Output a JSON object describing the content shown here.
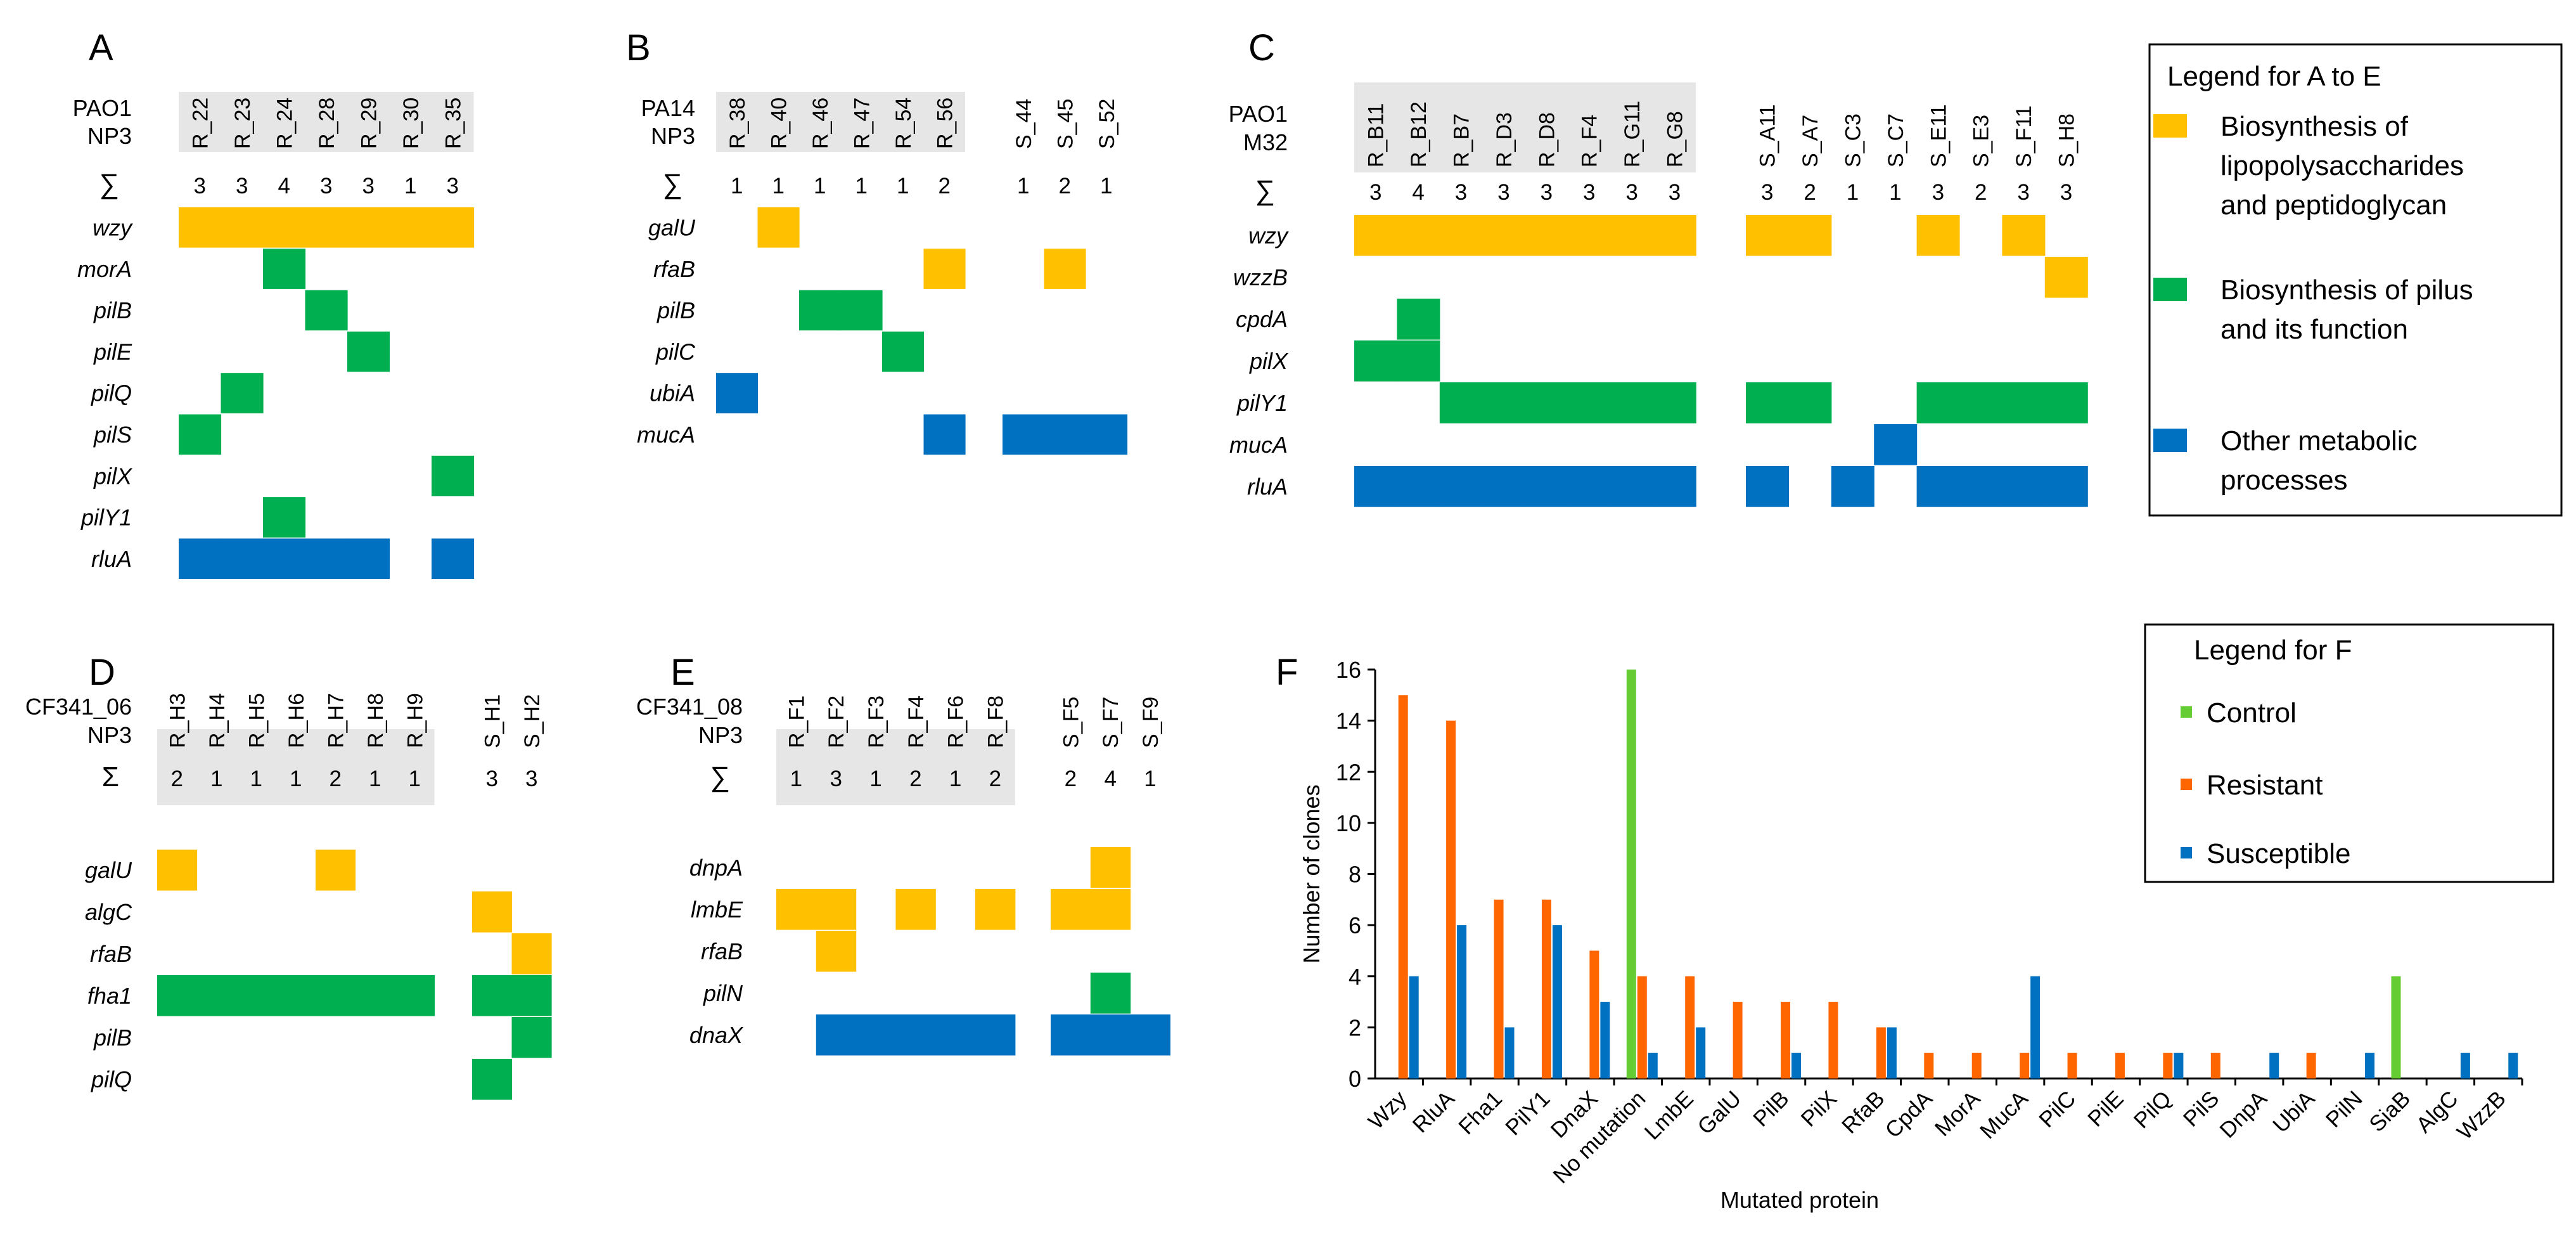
{
  "colors": {
    "lps": "#FFC000",
    "pilus": "#00B050",
    "other": "#0070C0",
    "grey": "#E6E6E6",
    "control": "#66CC33",
    "resistant": "#FF6600",
    "susceptible": "#0070C0"
  },
  "legend_ae": {
    "title": "Legend for A to E",
    "items": [
      {
        "key": "lps",
        "lines": [
          "Biosynthesis of",
          "lipopolysaccharides",
          "and peptidoglycan"
        ]
      },
      {
        "key": "pilus",
        "lines": [
          "Biosynthesis of pilus",
          "and its function"
        ]
      },
      {
        "key": "other",
        "lines": [
          "Other metabolic",
          "processes"
        ]
      }
    ]
  },
  "legend_f": {
    "title": "Legend for F",
    "items": [
      {
        "key": "control",
        "label": "Control"
      },
      {
        "key": "resistant",
        "label": "Resistant"
      },
      {
        "key": "susceptible",
        "label": "Susceptible"
      }
    ]
  },
  "panels": [
    {
      "letter": "A",
      "strain": "PAO1",
      "phage": "NP3",
      "sum_symbol": "∑",
      "groups": [
        {
          "columns": [
            "R_22",
            "R_23",
            "R_24",
            "R_28",
            "R_29",
            "R_30",
            "R_35"
          ],
          "sums": [
            "3",
            "3",
            "4",
            "3",
            "3",
            "1",
            "3"
          ],
          "shaded": true
        }
      ],
      "rows": [
        {
          "gene": "wzy",
          "color": "lps",
          "cells": [
            [
              0,
              0
            ],
            [
              0,
              1
            ],
            [
              0,
              2
            ],
            [
              0,
              3
            ],
            [
              0,
              4
            ],
            [
              0,
              5
            ],
            [
              0,
              6
            ]
          ]
        },
        {
          "gene": "morA",
          "color": "pilus",
          "cells": [
            [
              0,
              2
            ]
          ]
        },
        {
          "gene": "pilB",
          "color": "pilus",
          "cells": [
            [
              0,
              3
            ]
          ]
        },
        {
          "gene": "pilE",
          "color": "pilus",
          "cells": [
            [
              0,
              4
            ]
          ]
        },
        {
          "gene": "pilQ",
          "color": "pilus",
          "cells": [
            [
              0,
              1
            ]
          ]
        },
        {
          "gene": "pilS",
          "color": "pilus",
          "cells": [
            [
              0,
              0
            ]
          ]
        },
        {
          "gene": "pilX",
          "color": "pilus",
          "cells": [
            [
              0,
              6
            ]
          ]
        },
        {
          "gene": "pilY1",
          "color": "pilus",
          "cells": [
            [
              0,
              2
            ]
          ]
        },
        {
          "gene": "rluA",
          "color": "other",
          "cells": [
            [
              0,
              0
            ],
            [
              0,
              1
            ],
            [
              0,
              2
            ],
            [
              0,
              3
            ],
            [
              0,
              4
            ],
            [
              0,
              6
            ]
          ]
        }
      ]
    },
    {
      "letter": "B",
      "strain": "PA14",
      "phage": "NP3",
      "sum_symbol": "∑",
      "groups": [
        {
          "columns": [
            "R_38",
            "R_40",
            "R_46",
            "R_47",
            "R_54",
            "R_56"
          ],
          "sums": [
            "1",
            "1",
            "1",
            "1",
            "1",
            "2"
          ],
          "shaded": true
        },
        {
          "columns": [
            "S_44",
            "S_45",
            "S_52"
          ],
          "sums": [
            "1",
            "2",
            "1"
          ],
          "shaded": false
        }
      ],
      "rows": [
        {
          "gene": "galU",
          "color": "lps",
          "cells": [
            [
              0,
              1
            ]
          ]
        },
        {
          "gene": "rfaB",
          "color": "lps",
          "cells": [
            [
              0,
              5
            ],
            [
              1,
              1
            ]
          ]
        },
        {
          "gene": "pilB",
          "color": "pilus",
          "cells": [
            [
              0,
              2
            ],
            [
              0,
              3
            ]
          ]
        },
        {
          "gene": "pilC",
          "color": "pilus",
          "cells": [
            [
              0,
              4
            ]
          ]
        },
        {
          "gene": "ubiA",
          "color": "other",
          "cells": [
            [
              0,
              0
            ]
          ]
        },
        {
          "gene": "mucA",
          "color": "other",
          "cells": [
            [
              0,
              5
            ],
            [
              1,
              0
            ],
            [
              1,
              1
            ],
            [
              1,
              2
            ]
          ]
        }
      ]
    },
    {
      "letter": "C",
      "strain": "PAO1",
      "phage": "M32",
      "sum_symbol": "∑",
      "groups": [
        {
          "columns": [
            "R_B11",
            "R_B12",
            "R_B7",
            "R_D3",
            "R_D8",
            "R_F4",
            "R_G11",
            "R_G8"
          ],
          "sums": [
            "3",
            "4",
            "3",
            "3",
            "3",
            "3",
            "3",
            "3"
          ],
          "shaded": true
        },
        {
          "columns": [
            "S_A11",
            "S_A7",
            "S_C3",
            "S_C7",
            "S_E11",
            "S_E3",
            "S_F11",
            "S_H8"
          ],
          "sums": [
            "3",
            "2",
            "1",
            "1",
            "3",
            "2",
            "3",
            "3"
          ],
          "shaded": false
        }
      ],
      "rows": [
        {
          "gene": "wzy",
          "color": "lps",
          "cells": [
            [
              0,
              0
            ],
            [
              0,
              1
            ],
            [
              0,
              2
            ],
            [
              0,
              3
            ],
            [
              0,
              4
            ],
            [
              0,
              5
            ],
            [
              0,
              6
            ],
            [
              0,
              7
            ],
            [
              1,
              0
            ],
            [
              1,
              1
            ],
            [
              1,
              4
            ],
            [
              1,
              6
            ]
          ]
        },
        {
          "gene": "wzzB",
          "color": "lps",
          "cells": [
            [
              1,
              7
            ]
          ]
        },
        {
          "gene": "cpdA",
          "color": "pilus",
          "cells": [
            [
              0,
              1
            ]
          ]
        },
        {
          "gene": "pilX",
          "color": "pilus",
          "cells": [
            [
              0,
              0
            ],
            [
              0,
              1
            ]
          ]
        },
        {
          "gene": "pilY1",
          "color": "pilus",
          "cells": [
            [
              0,
              2
            ],
            [
              0,
              3
            ],
            [
              0,
              4
            ],
            [
              0,
              5
            ],
            [
              0,
              6
            ],
            [
              0,
              7
            ],
            [
              1,
              0
            ],
            [
              1,
              1
            ],
            [
              1,
              4
            ],
            [
              1,
              5
            ],
            [
              1,
              6
            ],
            [
              1,
              7
            ]
          ]
        },
        {
          "gene": "mucA",
          "color": "other",
          "cells": [
            [
              1,
              3
            ]
          ]
        },
        {
          "gene": "rluA",
          "color": "other",
          "cells": [
            [
              0,
              0
            ],
            [
              0,
              1
            ],
            [
              0,
              2
            ],
            [
              0,
              3
            ],
            [
              0,
              4
            ],
            [
              0,
              5
            ],
            [
              0,
              6
            ],
            [
              0,
              7
            ],
            [
              1,
              0
            ],
            [
              1,
              2
            ],
            [
              1,
              4
            ],
            [
              1,
              5
            ],
            [
              1,
              6
            ],
            [
              1,
              7
            ]
          ]
        }
      ]
    },
    {
      "letter": "D",
      "strain": "CF341_06",
      "phage": "NP3",
      "sum_symbol": "Σ",
      "groups": [
        {
          "columns": [
            "R_H3",
            "R_H4",
            "R_H5",
            "R_H6",
            "R_H7",
            "R_H8",
            "R_H9"
          ],
          "sums": [
            "2",
            "1",
            "1",
            "1",
            "2",
            "1",
            "1"
          ],
          "shaded": true
        },
        {
          "columns": [
            "S_H1",
            "S_H2"
          ],
          "sums": [
            "3",
            "3"
          ],
          "shaded": false
        }
      ],
      "rows": [
        {
          "gene": "galU",
          "color": "lps",
          "cells": [
            [
              0,
              0
            ],
            [
              0,
              4
            ]
          ]
        },
        {
          "gene": "algC",
          "color": "lps",
          "cells": [
            [
              1,
              0
            ]
          ]
        },
        {
          "gene": "rfaB",
          "color": "lps",
          "cells": [
            [
              1,
              1
            ]
          ]
        },
        {
          "gene": "fha1",
          "color": "pilus",
          "cells": [
            [
              0,
              0
            ],
            [
              0,
              1
            ],
            [
              0,
              2
            ],
            [
              0,
              3
            ],
            [
              0,
              4
            ],
            [
              0,
              5
            ],
            [
              0,
              6
            ],
            [
              1,
              0
            ],
            [
              1,
              1
            ]
          ]
        },
        {
          "gene": "pilB",
          "color": "pilus",
          "cells": [
            [
              1,
              1
            ]
          ]
        },
        {
          "gene": "pilQ",
          "color": "pilus",
          "cells": [
            [
              1,
              0
            ]
          ]
        }
      ]
    },
    {
      "letter": "E",
      "strain": "CF341_08",
      "phage": "NP3",
      "sum_symbol": "∑",
      "groups": [
        {
          "columns": [
            "R_F1",
            "R_F2",
            "R_F3",
            "R_F4",
            "R_F6",
            "R_F8"
          ],
          "sums": [
            "1",
            "3",
            "1",
            "2",
            "1",
            "2"
          ],
          "shaded": true
        },
        {
          "columns": [
            "S_F5",
            "S_F7",
            "S_F9"
          ],
          "sums": [
            "2",
            "4",
            "1"
          ],
          "shaded": false
        }
      ],
      "rows": [
        {
          "gene": "dnpA",
          "color": "lps",
          "cells": [
            [
              1,
              1
            ]
          ]
        },
        {
          "gene": "lmbE",
          "color": "lps",
          "cells": [
            [
              0,
              0
            ],
            [
              0,
              1
            ],
            [
              0,
              3
            ],
            [
              0,
              5
            ],
            [
              1,
              0
            ],
            [
              1,
              1
            ]
          ]
        },
        {
          "gene": "rfaB",
          "color": "lps",
          "cells": [
            [
              0,
              1
            ]
          ]
        },
        {
          "gene": "pilN",
          "color": "pilus",
          "cells": [
            [
              1,
              1
            ]
          ]
        },
        {
          "gene": "dnaX",
          "color": "other",
          "cells": [
            [
              0,
              1
            ],
            [
              0,
              2
            ],
            [
              0,
              3
            ],
            [
              0,
              4
            ],
            [
              0,
              5
            ],
            [
              1,
              0
            ],
            [
              1,
              1
            ],
            [
              1,
              2
            ]
          ]
        }
      ]
    }
  ],
  "chart_data": {
    "type": "bar",
    "panel_letter": "F",
    "title": "",
    "xlabel": "Mutated protein",
    "ylabel": "Number of clones",
    "ylim": [
      0,
      16
    ],
    "yticks": [
      "0",
      "2",
      "4",
      "6",
      "8",
      "10",
      "12",
      "14",
      "16"
    ],
    "categories": [
      "Wzy",
      "RluA",
      "Fha1",
      "PilY1",
      "DnaX",
      "No mutation",
      "LmbE",
      "GalU",
      "PilB",
      "PilX",
      "RfaB",
      "CpdA",
      "MorA",
      "MucA",
      "PilC",
      "PilE",
      "PilQ",
      "PilS",
      "DnpA",
      "UbiA",
      "PilN",
      "SiaB",
      "AlgC",
      "WzzB"
    ],
    "series": [
      {
        "name": "Control",
        "key": "control",
        "values": [
          0,
          0,
          0,
          0,
          0,
          16,
          0,
          0,
          0,
          0,
          0,
          0,
          0,
          0,
          0,
          0,
          0,
          0,
          0,
          0,
          0,
          4,
          0,
          0
        ]
      },
      {
        "name": "Resistant",
        "key": "resistant",
        "values": [
          15,
          14,
          7,
          7,
          5,
          4,
          4,
          3,
          3,
          3,
          2,
          1,
          1,
          1,
          1,
          1,
          1,
          1,
          0,
          1,
          0,
          0,
          0,
          0
        ]
      },
      {
        "name": "Susceptible",
        "key": "susceptible",
        "values": [
          4,
          6,
          2,
          6,
          3,
          1,
          2,
          0,
          1,
          0,
          2,
          0,
          0,
          4,
          0,
          0,
          1,
          0,
          1,
          0,
          1,
          0,
          1,
          1
        ]
      }
    ]
  }
}
